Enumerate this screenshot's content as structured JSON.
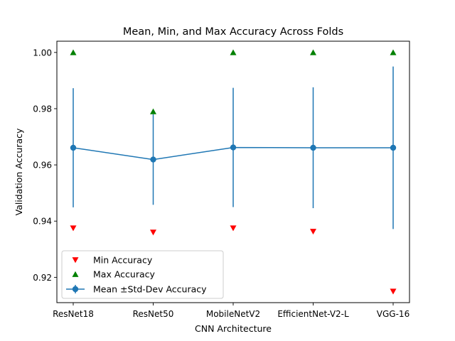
{
  "chart_data": {
    "type": "line",
    "title": "Mean, Min, and Max Accuracy Across Folds",
    "xlabel": "CNN Architecture",
    "ylabel": "Validation Accuracy",
    "categories": [
      "ResNet18",
      "ResNet50",
      "MobileNetV2",
      "EfficientNet-V2-L",
      "VGG-16"
    ],
    "ylim": [
      0.911,
      1.004
    ],
    "yticks": [
      0.92,
      0.94,
      0.96,
      0.98,
      1.0
    ],
    "ytick_labels": [
      "0.92",
      "0.94",
      "0.96",
      "0.98",
      "1.00"
    ],
    "grid": false,
    "legend_position": "lower-left",
    "series": [
      {
        "name": "Min Accuracy",
        "marker": "triangle-down",
        "color": "#ff0000",
        "values": [
          0.9375,
          0.936,
          0.9375,
          0.9363,
          0.915
        ]
      },
      {
        "name": "Max Accuracy",
        "marker": "triangle-up",
        "color": "#008000",
        "values": [
          1.0,
          0.979,
          1.0,
          1.0,
          1.0
        ]
      },
      {
        "name": "Mean ±Std-Dev Accuracy",
        "marker": "circle",
        "color": "#1f77b4",
        "values": [
          0.9661,
          0.9619,
          0.9662,
          0.9661,
          0.9661
        ],
        "std": [
          0.0212,
          0.0161,
          0.0212,
          0.0215,
          0.0289
        ]
      }
    ]
  }
}
